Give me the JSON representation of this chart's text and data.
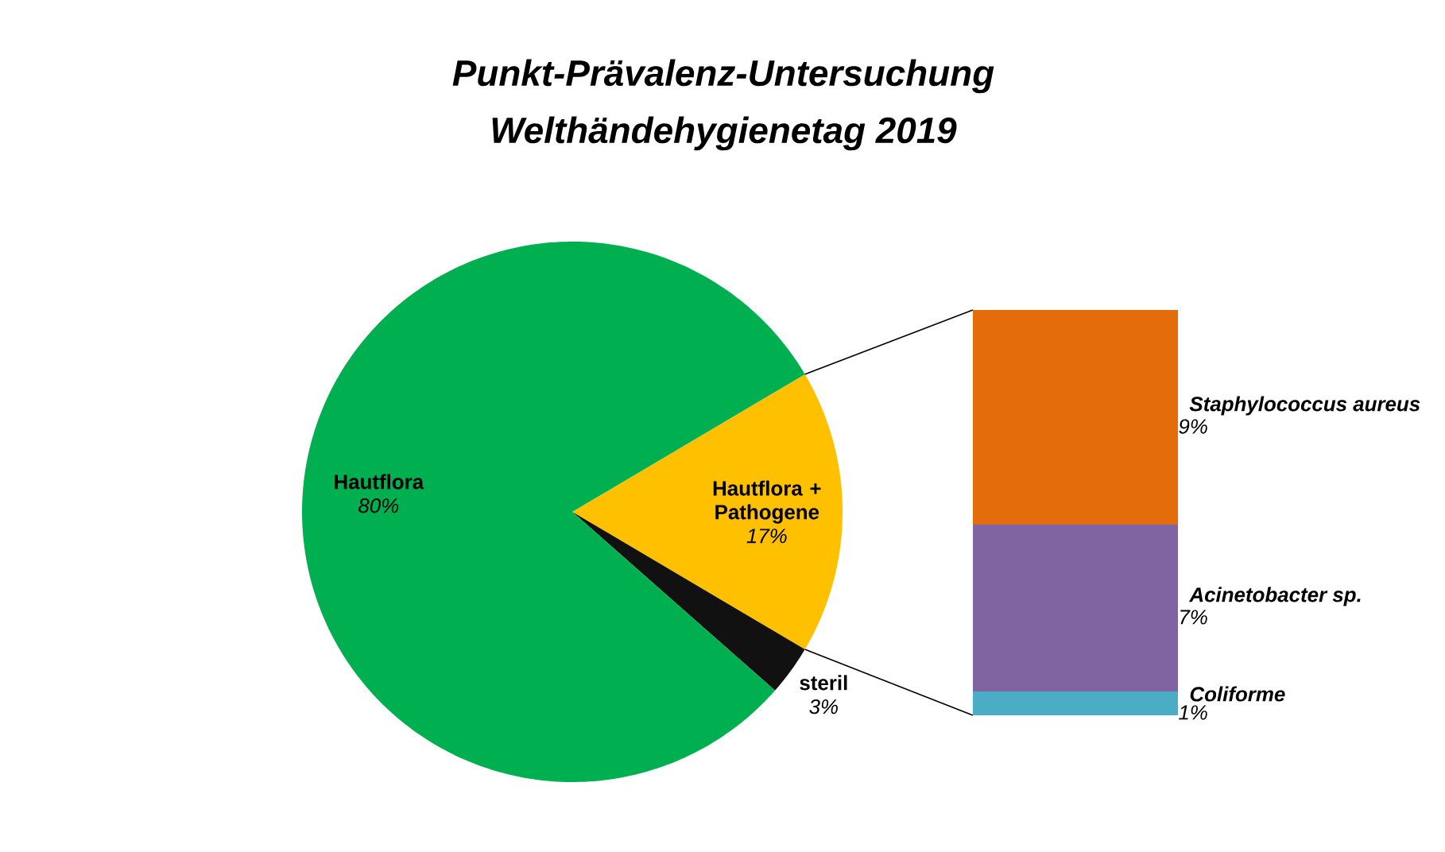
{
  "chart_data": [
    {
      "type": "pie",
      "title": "Punkt-Prävalenz-Untersuchung",
      "subtitle": "Welthändehygienetag 2019",
      "categories": [
        "Hautflora + Pathogene",
        "steril",
        "Hautflora"
      ],
      "values": [
        17,
        3,
        80
      ],
      "colors": [
        "#ffc000",
        "#111111",
        "#00b050"
      ],
      "value_labels": [
        "17%",
        "3%",
        "80%"
      ]
    },
    {
      "type": "bar",
      "stacked": true,
      "categories": [
        null
      ],
      "series": [
        {
          "name": "Coliforme",
          "color": "#4bacc6",
          "values": [
            1
          ],
          "value_labels": [
            "1%"
          ]
        },
        {
          "name": "Acinetobacter sp.",
          "color": "#8064a2",
          "values": [
            7
          ],
          "value_labels": [
            "7%"
          ]
        },
        {
          "name": "Staphylococcus aureus",
          "color": "#e46c0a",
          "values": [
            9
          ],
          "value_labels": [
            "9%"
          ]
        }
      ]
    }
  ]
}
